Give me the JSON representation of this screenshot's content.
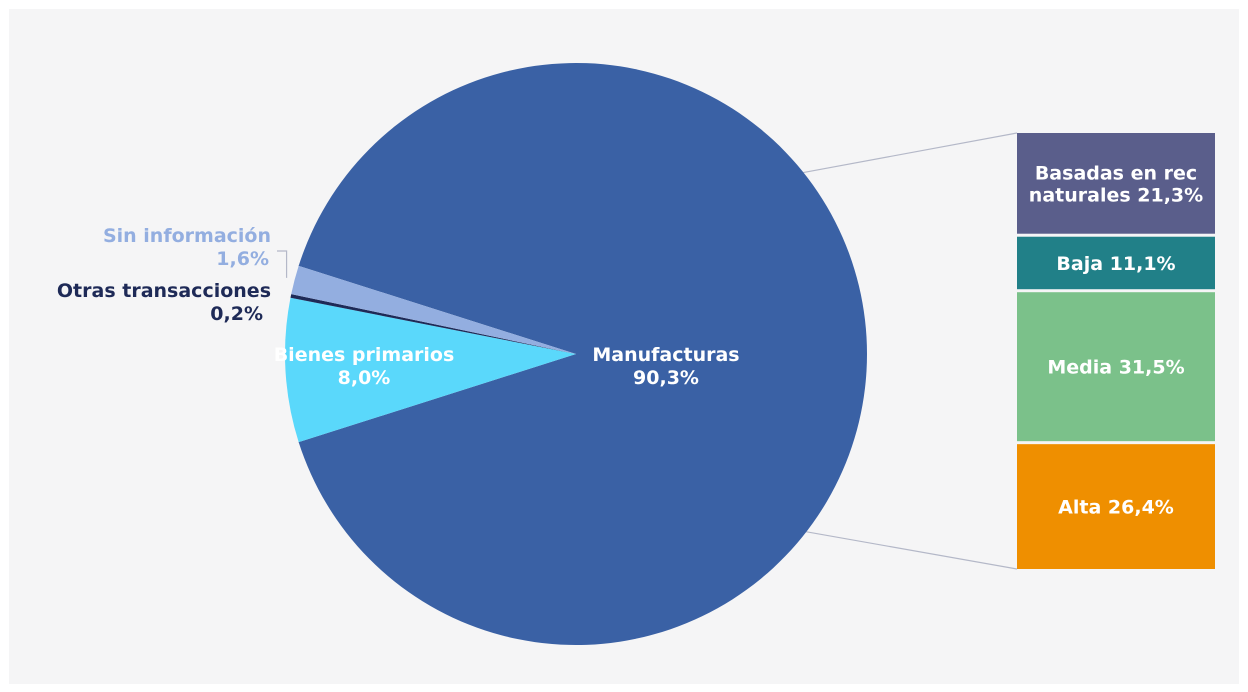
{
  "chart_data": {
    "type": "pie",
    "title": "",
    "pie": {
      "slices": [
        {
          "name": "Manufacturas",
          "value": 90.3,
          "value_label": "90,3%",
          "color": "#3a61a5",
          "text_color": "#ffffff"
        },
        {
          "name": "Bienes primarios",
          "value": 8.0,
          "value_label": "8,0%",
          "color": "#5ad8fb",
          "text_color": "#ffffff"
        },
        {
          "name": "Otras transacciones",
          "value": 0.2,
          "value_label": "0,2%",
          "color": "#1e2a57",
          "text_color": "#1e2a57"
        },
        {
          "name": "Sin información",
          "value": 1.6,
          "value_label": "1,6%",
          "color": "#93aee0",
          "text_color": "#93aee0"
        }
      ]
    },
    "breakdown": {
      "parent": "Manufacturas",
      "segments": [
        {
          "line1": "Basadas en rec",
          "line2": "naturales 21,3%",
          "value": 21.3,
          "color": "#5a5e8b"
        },
        {
          "line1": "Baja 11,1%",
          "line2": "",
          "value": 11.1,
          "color": "#218088"
        },
        {
          "line1": "Media 31,5%",
          "line2": "",
          "value": 31.5,
          "color": "#7bc18a"
        },
        {
          "line1": "Alta 26,4%",
          "line2": "",
          "value": 26.4,
          "color": "#ef8f00"
        }
      ]
    }
  }
}
